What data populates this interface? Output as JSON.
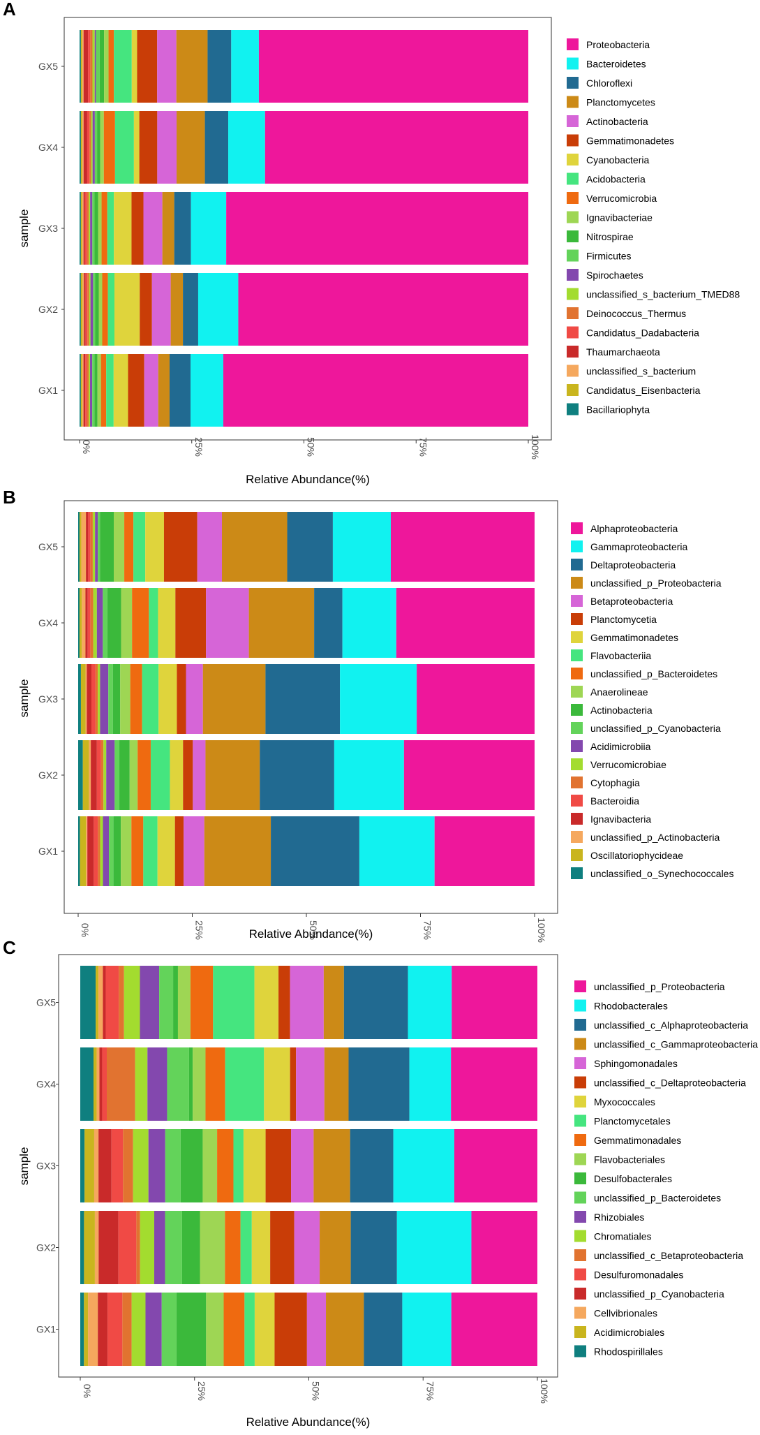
{
  "chart_data": [
    {
      "panel": "A",
      "type": "bar",
      "orientation": "horizontal",
      "stacked": true,
      "xlabel": "Relative Abundance(%)",
      "ylabel": "sample",
      "xticks": [
        "0%",
        "25%",
        "50%",
        "75%",
        "100%"
      ],
      "xlim": [
        0,
        100
      ],
      "categories": [
        "GX5",
        "GX4",
        "GX3",
        "GX2",
        "GX1"
      ],
      "legend_position": "right",
      "legend_order": [
        "Proteobacteria",
        "Bacteroidetes",
        "Chloroflexi",
        "Planctomycetes",
        "Actinobacteria",
        "Gemmatimonadetes",
        "Cyanobacteria",
        "Acidobacteria",
        "Verrucomicrobia",
        "Ignavibacteriae",
        "Nitrospirae",
        "Firmicutes",
        "Spirochaetes",
        "unclassified_s_bacterium_TMED88",
        "Deinococcus_Thermus",
        "Candidatus_Dadabacteria",
        "Thaumarchaeota",
        "unclassified_s_bacterium",
        "Candidatus_Eisenbacteria",
        "Bacillariophyta"
      ],
      "series": [
        {
          "name": "Bacillariophyta",
          "color": "#0f7f7f",
          "values": [
            0.3,
            0.3,
            0.3,
            0.3,
            0.3
          ]
        },
        {
          "name": "Candidatus_Eisenbacteria",
          "color": "#c9b51e",
          "values": [
            0.3,
            0.3,
            0.3,
            0.4,
            0.3
          ]
        },
        {
          "name": "unclassified_s_bacterium",
          "color": "#f5a85e",
          "values": [
            0.3,
            0.3,
            0.3,
            0.3,
            0.3
          ]
        },
        {
          "name": "Thaumarchaeota",
          "color": "#c92a2a",
          "values": [
            1.0,
            0.8,
            0.3,
            0.4,
            0.4
          ]
        },
        {
          "name": "Candidatus_Dadabacteria",
          "color": "#f04a45",
          "values": [
            0.5,
            0.5,
            0.5,
            0.4,
            0.4
          ]
        },
        {
          "name": "Deinococcus_Thermus",
          "color": "#e17330",
          "values": [
            0.5,
            0.4,
            0.4,
            0.4,
            0.4
          ]
        },
        {
          "name": "unclassified_s_bacterium_TMED88",
          "color": "#a3dc2f",
          "values": [
            0.5,
            0.3,
            0.3,
            0.3,
            0.3
          ]
        },
        {
          "name": "Spirochaetes",
          "color": "#8348ae",
          "values": [
            0.3,
            0.5,
            0.5,
            0.6,
            0.5
          ]
        },
        {
          "name": "Firmicutes",
          "color": "#63d35a",
          "values": [
            0.8,
            0.5,
            0.5,
            0.5,
            0.5
          ]
        },
        {
          "name": "Nitrospirae",
          "color": "#3bb93b",
          "values": [
            1.0,
            0.7,
            0.8,
            0.8,
            0.7
          ]
        },
        {
          "name": "Ignavibacteriae",
          "color": "#9ed654",
          "values": [
            1.0,
            0.8,
            0.8,
            0.8,
            0.8
          ]
        },
        {
          "name": "Verrucomicrobia",
          "color": "#ef6a10",
          "values": [
            1.2,
            2.5,
            1.3,
            1.3,
            1.2
          ]
        },
        {
          "name": "Acidobacteria",
          "color": "#45e57f",
          "values": [
            4.0,
            4.2,
            1.5,
            1.5,
            1.7
          ]
        },
        {
          "name": "Cyanobacteria",
          "color": "#dfd43c",
          "values": [
            1.2,
            1.2,
            4.0,
            5.8,
            3.3
          ]
        },
        {
          "name": "Gemmatimonadetes",
          "color": "#c93d07",
          "values": [
            4.5,
            4.0,
            2.7,
            2.8,
            3.7
          ]
        },
        {
          "name": "Actinobacteria",
          "color": "#d665d7",
          "values": [
            4.3,
            4.3,
            4.3,
            4.3,
            3.2
          ]
        },
        {
          "name": "Planctomycetes",
          "color": "#cc8a17",
          "values": [
            7.0,
            6.3,
            2.7,
            2.8,
            2.6
          ]
        },
        {
          "name": "Chloroflexi",
          "color": "#216a91",
          "values": [
            5.3,
            5.2,
            3.8,
            3.5,
            4.8
          ]
        },
        {
          "name": "Bacteroidetes",
          "color": "#11f2f0",
          "values": [
            6.2,
            8.2,
            8.0,
            9.2,
            7.5
          ]
        },
        {
          "name": "Proteobacteria",
          "color": "#ee179b",
          "values": [
            60.4,
            58.6,
            68.6,
            66.5,
            69.8
          ]
        }
      ]
    },
    {
      "panel": "B",
      "type": "bar",
      "orientation": "horizontal",
      "stacked": true,
      "xlabel": "Relative Abundance(%)",
      "ylabel": "sample",
      "xticks": [
        "0%",
        "25%",
        "50%",
        "75%",
        "100%"
      ],
      "xlim": [
        0,
        100
      ],
      "categories": [
        "GX5",
        "GX4",
        "GX3",
        "GX2",
        "GX1"
      ],
      "legend_position": "right",
      "legend_order": [
        "Alphaproteobacteria",
        "Gammaproteobacteria",
        "Deltaproteobacteria",
        "unclassified_p_Proteobacteria",
        "Betaproteobacteria",
        "Planctomycetia",
        "Gemmatimonadetes",
        "Flavobacteriia",
        "unclassified_p_Bacteroidetes",
        "Anaerolineae",
        "Actinobacteria",
        "unclassified_p_Cyanobacteria",
        "Acidimicrobiia",
        "Verrucomicrobiae",
        "Cytophagia",
        "Bacteroidia",
        "Ignavibacteria",
        "unclassified_p_Actinobacteria",
        "Oscillatoriophycideae",
        "unclassified_o_Synechococcales"
      ],
      "series": [
        {
          "name": "unclassified_o_Synechococcales",
          "color": "#0f7f7f",
          "values": [
            0.3,
            0.3,
            0.6,
            1.0,
            0.4
          ]
        },
        {
          "name": "Oscillatoriophycideae",
          "color": "#c9b51e",
          "values": [
            0.4,
            0.5,
            1.0,
            1.3,
            1.3
          ]
        },
        {
          "name": "unclassified_p_Actinobacteria",
          "color": "#f5a85e",
          "values": [
            1.0,
            0.8,
            0.3,
            0.4,
            0.3
          ]
        },
        {
          "name": "Ignavibacteria",
          "color": "#c92a2a",
          "values": [
            0.5,
            0.5,
            1.0,
            1.3,
            1.4
          ]
        },
        {
          "name": "Bacteroidia",
          "color": "#f04a45",
          "values": [
            0.5,
            0.6,
            0.9,
            0.9,
            0.9
          ]
        },
        {
          "name": "Cytophagia",
          "color": "#e17330",
          "values": [
            0.5,
            0.6,
            0.5,
            0.5,
            0.5
          ]
        },
        {
          "name": "Verrucomicrobiae",
          "color": "#a3dc2f",
          "values": [
            0.5,
            0.8,
            0.5,
            0.6,
            0.6
          ]
        },
        {
          "name": "Acidimicrobiia",
          "color": "#8348ae",
          "values": [
            0.6,
            1.3,
            1.8,
            1.8,
            1.3
          ]
        },
        {
          "name": "unclassified_p_Cyanobacteria",
          "color": "#63d35a",
          "values": [
            0.5,
            1.0,
            1.0,
            1.0,
            1.0
          ]
        },
        {
          "name": "Actinobacteria",
          "color": "#3bb93b",
          "values": [
            3.0,
            3.0,
            1.6,
            2.2,
            1.6
          ]
        },
        {
          "name": "Anaerolineae",
          "color": "#9ed654",
          "values": [
            2.3,
            2.4,
            2.2,
            1.7,
            2.3
          ]
        },
        {
          "name": "unclassified_p_Bacteroidetes",
          "color": "#ef6a10",
          "values": [
            2.0,
            3.7,
            2.6,
            2.8,
            2.6
          ]
        },
        {
          "name": "Flavobacteriia",
          "color": "#45e57f",
          "values": [
            2.6,
            2.0,
            3.6,
            4.1,
            3.1
          ]
        },
        {
          "name": "Gemmatimonadetes",
          "color": "#dfd43c",
          "values": [
            4.1,
            3.8,
            4.0,
            2.8,
            3.8
          ]
        },
        {
          "name": "Planctomycetia",
          "color": "#c93d07",
          "values": [
            7.3,
            6.7,
            2.0,
            2.1,
            1.9
          ]
        },
        {
          "name": "Betaproteobacteria",
          "color": "#d665d7",
          "values": [
            5.4,
            9.4,
            3.7,
            2.7,
            4.5
          ]
        },
        {
          "name": "unclassified_p_Proteobacteria",
          "color": "#cc8a17",
          "values": [
            14.3,
            14.3,
            13.7,
            11.6,
            14.5
          ]
        },
        {
          "name": "Deltaproteobacteria",
          "color": "#216a91",
          "values": [
            10.0,
            6.2,
            16.3,
            15.9,
            19.3
          ]
        },
        {
          "name": "Gammaproteobacteria",
          "color": "#11f2f0",
          "values": [
            12.7,
            11.8,
            16.8,
            14.9,
            16.4
          ]
        },
        {
          "name": "Alphaproteobacteria",
          "color": "#ee179b",
          "values": [
            31.5,
            30.3,
            25.8,
            27.9,
            21.8
          ]
        }
      ]
    },
    {
      "panel": "C",
      "type": "bar",
      "orientation": "horizontal",
      "stacked": true,
      "xlabel": "Relative Abundance(%)",
      "ylabel": "sample",
      "xticks": [
        "0%",
        "25%",
        "50%",
        "75%",
        "100%"
      ],
      "xlim": [
        0,
        100
      ],
      "categories": [
        "GX5",
        "GX4",
        "GX3",
        "GX2",
        "GX1"
      ],
      "legend_position": "right",
      "legend_order": [
        "unclassified_p_Proteobacteria",
        "Rhodobacterales",
        "unclassified_c_Alphaproteobacteria",
        "unclassified_c_Gammaproteobacteria",
        "Sphingomonadales",
        "unclassified_c_Deltaproteobacteria",
        "Myxococcales",
        "Planctomycetales",
        "Gemmatimonadales",
        "Flavobacteriales",
        "Desulfobacterales",
        "unclassified_p_Bacteroidetes",
        "Rhizobiales",
        "Chromatiales",
        "unclassified_c_Betaproteobacteria",
        "Desulfuromonadales",
        "unclassified_p_Cyanobacteria",
        "Cellvibrionales",
        "Acidimicrobiales",
        "Rhodospirillales"
      ],
      "series": [
        {
          "name": "Rhodospirillales",
          "color": "#0f7f7f",
          "values": [
            3.2,
            2.9,
            0.9,
            0.8,
            0.8
          ]
        },
        {
          "name": "Acidimicrobiales",
          "color": "#c9b51e",
          "values": [
            0.6,
            0.7,
            2.0,
            2.3,
            0.9
          ]
        },
        {
          "name": "Cellvibrionales",
          "color": "#f5a85e",
          "values": [
            0.9,
            0.6,
            0.9,
            0.8,
            2.1
          ]
        },
        {
          "name": "unclassified_p_Cyanobacteria",
          "color": "#c92a2a",
          "values": [
            0.6,
            0.6,
            2.7,
            4.2,
            2.1
          ]
        },
        {
          "name": "Desulfuromonadales",
          "color": "#f04a45",
          "values": [
            2.7,
            1.0,
            2.4,
            3.8,
            3.2
          ]
        },
        {
          "name": "unclassified_c_Betaproteobacteria",
          "color": "#e17330",
          "values": [
            1.1,
            6.2,
            2.1,
            0.8,
            2.0
          ]
        },
        {
          "name": "Chromatiales",
          "color": "#a3dc2f",
          "values": [
            3.3,
            2.7,
            3.2,
            3.0,
            3.0
          ]
        },
        {
          "name": "Rhizobiales",
          "color": "#8348ae",
          "values": [
            4.0,
            4.3,
            3.5,
            2.3,
            3.5
          ]
        },
        {
          "name": "unclassified_p_Bacteroidetes",
          "color": "#63d35a",
          "values": [
            2.9,
            4.8,
            3.2,
            3.6,
            3.2
          ]
        },
        {
          "name": "Desulfobacterales",
          "color": "#3bb93b",
          "values": [
            1.0,
            0.8,
            4.6,
            3.8,
            6.4
          ]
        },
        {
          "name": "Flavobacteriales",
          "color": "#9ed654",
          "values": [
            2.6,
            2.8,
            3.0,
            5.3,
            3.8
          ]
        },
        {
          "name": "Gemmatimonadales",
          "color": "#ef6a10",
          "values": [
            4.7,
            4.3,
            3.4,
            3.3,
            4.5
          ]
        },
        {
          "name": "Planctomycetales",
          "color": "#45e57f",
          "values": [
            8.6,
            8.5,
            2.1,
            2.4,
            2.2
          ]
        },
        {
          "name": "Myxococcales",
          "color": "#dfd43c",
          "values": [
            5.0,
            5.7,
            4.6,
            3.9,
            4.3
          ]
        },
        {
          "name": "unclassified_c_Deltaproteobacteria",
          "color": "#c93d07",
          "values": [
            2.4,
            1.3,
            5.3,
            5.1,
            7.0
          ]
        },
        {
          "name": "Sphingomonadales",
          "color": "#d665d7",
          "values": [
            7.0,
            6.2,
            4.7,
            5.4,
            4.1
          ]
        },
        {
          "name": "unclassified_c_Gammaproteobacteria",
          "color": "#cc8a17",
          "values": [
            4.2,
            5.3,
            7.6,
            6.6,
            8.2
          ]
        },
        {
          "name": "unclassified_c_Alphaproteobacteria",
          "color": "#216a91",
          "values": [
            13.3,
            13.3,
            9.0,
            9.8,
            8.3
          ]
        },
        {
          "name": "Rhodobacterales",
          "color": "#11f2f0",
          "values": [
            9.1,
            9.1,
            12.7,
            15.8,
            10.6
          ]
        },
        {
          "name": "unclassified_p_Proteobacteria",
          "color": "#ee179b",
          "values": [
            17.8,
            18.9,
            17.3,
            14.0,
            18.6
          ]
        }
      ]
    }
  ]
}
